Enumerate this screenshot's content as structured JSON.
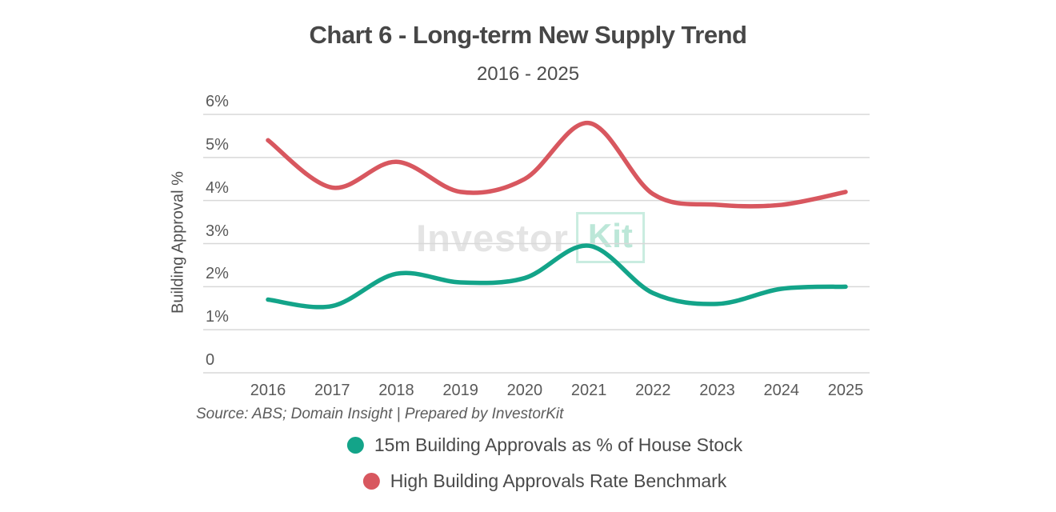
{
  "header": {
    "title": "Chart 6 - Long-term New Supply Trend",
    "subtitle": "2016 - 2025"
  },
  "watermark": {
    "part1": "Investor",
    "part2": "Kit"
  },
  "source_note": "Source: ABS; Domain Insight | Prepared by InvestorKit",
  "colors": {
    "series_green": "#13a489",
    "series_red": "#d8575f",
    "grid": "#d8d8d8",
    "title_text": "#474747",
    "tick_text": "#595959",
    "legend_text": "#4a4a4a",
    "watermark_gray": "#e4e4e4",
    "watermark_teal": "#bce7d8"
  },
  "chart_data": {
    "type": "line",
    "title": "Chart 6 - Long-term New Supply Trend",
    "subtitle": "2016 - 2025",
    "ylabel": "Building Approval %",
    "xlabel": "",
    "x": [
      "2016",
      "2017",
      "2018",
      "2019",
      "2020",
      "2021",
      "2022",
      "2023",
      "2024",
      "2025"
    ],
    "ylim": [
      0,
      6
    ],
    "grid": true,
    "legend_position": "bottom",
    "y_ticks": [
      {
        "value": 6,
        "label": "6%"
      },
      {
        "value": 5,
        "label": "5%"
      },
      {
        "value": 4,
        "label": "4%"
      },
      {
        "value": 3,
        "label": "3%"
      },
      {
        "value": 2,
        "label": "2%"
      },
      {
        "value": 1,
        "label": "1%"
      },
      {
        "value": 0,
        "label": "0"
      }
    ],
    "series": [
      {
        "name": "15m Building Approvals as % of House Stock",
        "color": "#13a489",
        "values": [
          1.7,
          1.55,
          2.3,
          2.1,
          2.2,
          2.95,
          1.85,
          1.6,
          1.95,
          2.0
        ]
      },
      {
        "name": "High Building Approvals Rate Benchmark",
        "color": "#d8575f",
        "values": [
          5.4,
          4.3,
          4.9,
          4.2,
          4.5,
          5.8,
          4.15,
          3.9,
          3.9,
          4.2
        ]
      }
    ]
  }
}
